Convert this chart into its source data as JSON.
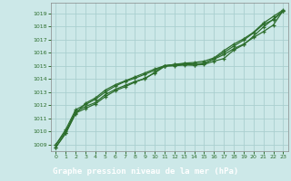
{
  "xlabel": "Graphe pression niveau de la mer (hPa)",
  "xlim": [
    -0.5,
    23.5
  ],
  "ylim": [
    1008.5,
    1019.8
  ],
  "yticks": [
    1009,
    1010,
    1011,
    1012,
    1013,
    1014,
    1015,
    1016,
    1017,
    1018,
    1019
  ],
  "xticks": [
    0,
    1,
    2,
    3,
    4,
    5,
    6,
    7,
    8,
    9,
    10,
    11,
    12,
    13,
    14,
    15,
    16,
    17,
    18,
    19,
    20,
    21,
    22,
    23
  ],
  "bg_color": "#cce8e8",
  "grid_color": "#aacfcf",
  "line_color": "#2d6e2d",
  "marker": "+",
  "linewidth": 0.9,
  "markersize": 3.5,
  "xlabel_bg": "#2d6e2d",
  "xlabel_color": "#ffffff",
  "tick_color": "#2d6e2d",
  "lines": [
    [
      1009.0,
      1010.0,
      1011.5,
      1011.9,
      1012.2,
      1012.8,
      1013.2,
      1013.5,
      1013.8,
      1014.0,
      1014.5,
      1015.0,
      1015.05,
      1015.1,
      1015.05,
      1015.1,
      1015.35,
      1015.55,
      1016.2,
      1016.6,
      1017.25,
      1017.95,
      1018.55,
      1019.2
    ],
    [
      1009.0,
      1010.15,
      1011.65,
      1012.05,
      1012.45,
      1013.0,
      1013.45,
      1013.8,
      1014.05,
      1014.35,
      1014.65,
      1015.0,
      1015.1,
      1015.15,
      1015.15,
      1015.2,
      1015.5,
      1015.85,
      1016.3,
      1016.65,
      1017.15,
      1017.6,
      1018.1,
      1019.2
    ],
    [
      1008.8,
      1009.9,
      1011.4,
      1011.75,
      1012.1,
      1012.65,
      1013.1,
      1013.4,
      1013.75,
      1014.05,
      1014.45,
      1014.95,
      1015.0,
      1015.05,
      1015.05,
      1015.15,
      1015.55,
      1016.0,
      1016.5,
      1016.95,
      1017.5,
      1018.15,
      1018.5,
      1019.15
    ],
    [
      1008.8,
      1009.85,
      1011.35,
      1012.15,
      1012.55,
      1013.15,
      1013.55,
      1013.85,
      1014.15,
      1014.45,
      1014.75,
      1015.0,
      1015.1,
      1015.2,
      1015.25,
      1015.35,
      1015.6,
      1016.15,
      1016.65,
      1017.05,
      1017.55,
      1018.25,
      1018.75,
      1019.25
    ]
  ]
}
